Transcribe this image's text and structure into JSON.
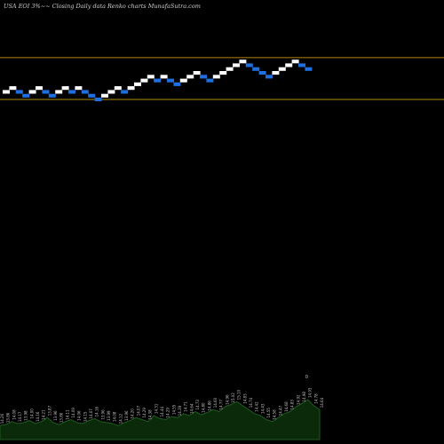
{
  "chart_data": {
    "type": "renko",
    "title": "USA EOI 3%~~ Closing Daily data  Renko  charts MunafaSutra.com",
    "colors": {
      "background": "#000000",
      "up_brick": "#ffffff",
      "down_brick": "#1e6fe0",
      "reference_line": "#b8860b",
      "volume_fill": "#0a2a0a",
      "volume_outline": "#1f5a1f",
      "volume_label": "#c0c0c0"
    },
    "reference_lines": [
      {
        "value": 14.95
      },
      {
        "value": 13.85
      }
    ],
    "y_range": [
      7.0,
      16.0
    ],
    "bricks": [
      {
        "dir": "up",
        "close": 14.05
      },
      {
        "dir": "up",
        "close": 14.15
      },
      {
        "dir": "down",
        "close": 14.05
      },
      {
        "dir": "down",
        "close": 13.95
      },
      {
        "dir": "up",
        "close": 14.05
      },
      {
        "dir": "up",
        "close": 14.15
      },
      {
        "dir": "down",
        "close": 14.05
      },
      {
        "dir": "down",
        "close": 13.95
      },
      {
        "dir": "up",
        "close": 14.05
      },
      {
        "dir": "up",
        "close": 14.15
      },
      {
        "dir": "down",
        "close": 14.05
      },
      {
        "dir": "up",
        "close": 14.15
      },
      {
        "dir": "down",
        "close": 14.05
      },
      {
        "dir": "down",
        "close": 13.95
      },
      {
        "dir": "down",
        "close": 13.85
      },
      {
        "dir": "up",
        "close": 13.95
      },
      {
        "dir": "up",
        "close": 14.05
      },
      {
        "dir": "up",
        "close": 14.15
      },
      {
        "dir": "down",
        "close": 14.05
      },
      {
        "dir": "up",
        "close": 14.15
      },
      {
        "dir": "up",
        "close": 14.25
      },
      {
        "dir": "up",
        "close": 14.35
      },
      {
        "dir": "up",
        "close": 14.45
      },
      {
        "dir": "down",
        "close": 14.35
      },
      {
        "dir": "up",
        "close": 14.45
      },
      {
        "dir": "down",
        "close": 14.35
      },
      {
        "dir": "down",
        "close": 14.25
      },
      {
        "dir": "up",
        "close": 14.35
      },
      {
        "dir": "up",
        "close": 14.45
      },
      {
        "dir": "up",
        "close": 14.55
      },
      {
        "dir": "down",
        "close": 14.45
      },
      {
        "dir": "down",
        "close": 14.35
      },
      {
        "dir": "up",
        "close": 14.45
      },
      {
        "dir": "up",
        "close": 14.55
      },
      {
        "dir": "up",
        "close": 14.65
      },
      {
        "dir": "up",
        "close": 14.75
      },
      {
        "dir": "up",
        "close": 14.85
      },
      {
        "dir": "down",
        "close": 14.75
      },
      {
        "dir": "down",
        "close": 14.65
      },
      {
        "dir": "down",
        "close": 14.55
      },
      {
        "dir": "down",
        "close": 14.45
      },
      {
        "dir": "up",
        "close": 14.55
      },
      {
        "dir": "up",
        "close": 14.65
      },
      {
        "dir": "up",
        "close": 14.75
      },
      {
        "dir": "up",
        "close": 14.85
      },
      {
        "dir": "down",
        "close": 14.75
      },
      {
        "dir": "down",
        "close": 14.65
      }
    ],
    "volume_labels": [
      "14.26",
      "13.86",
      "14.08",
      "14.17",
      "13.98",
      "14.00",
      "14.16",
      "14.21",
      "13.87",
      "13.96",
      "13.86",
      "14.11",
      "14.09",
      "14.06",
      "14.15",
      "14.07",
      "14.16",
      "13.96",
      "13.99",
      "14.08",
      "14.12",
      "13.96",
      "14.20",
      "14.07",
      "14.29",
      "14.38",
      "14.31",
      "14.44",
      "14.29",
      "14.55",
      "14.39",
      "14.71",
      "14.64",
      "14.73",
      "14.80",
      "14.86",
      "14.60",
      "14.77",
      "14.96",
      "15.02",
      "15.10",
      "14.83",
      "14.74",
      "14.42",
      "14.43",
      "14.55",
      "14.58",
      "14.47",
      "14.68",
      "14.83",
      "14.92",
      "14.98",
      "14.93",
      "14.78",
      "14.64"
    ],
    "volume_values": [
      14,
      15,
      18,
      16,
      17,
      19,
      16,
      18,
      22,
      17,
      15,
      18,
      20,
      17,
      16,
      19,
      21,
      18,
      17,
      16,
      14,
      17,
      19,
      22,
      20,
      18,
      24,
      21,
      20,
      23,
      22,
      26,
      24,
      28,
      25,
      27,
      30,
      28,
      33,
      35,
      38,
      34,
      30,
      26,
      24,
      20,
      18,
      22,
      26,
      28,
      33,
      36,
      40,
      34,
      30
    ],
    "volume_marker": "0"
  }
}
